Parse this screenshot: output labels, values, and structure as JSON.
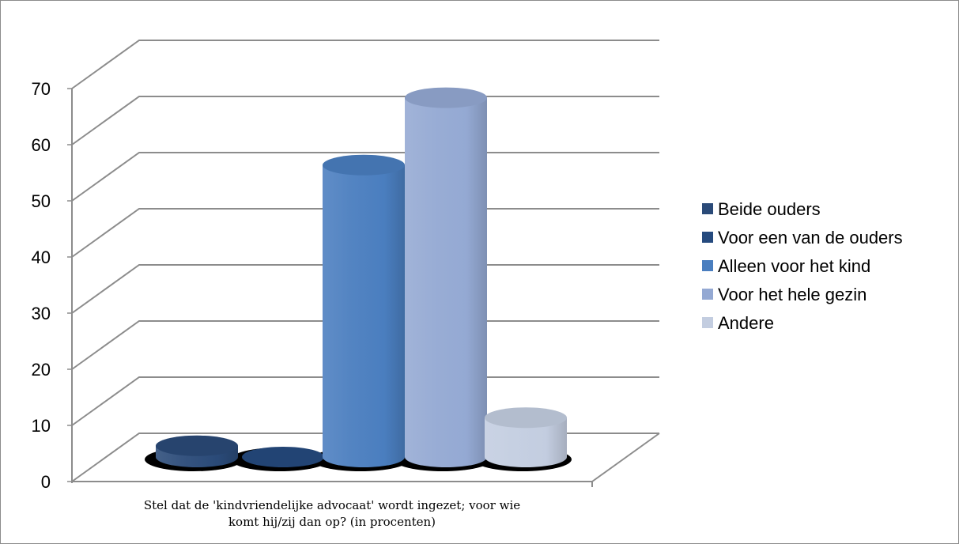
{
  "chart_data": {
    "type": "bar",
    "style": "3d-cylinder",
    "title": "",
    "xlabel": "",
    "ylabel": "",
    "category_label_lines": [
      "Stel dat de 'kindvriendelijke advocaat' wordt ingezet; voor wie",
      "komt hij/zij dan op? (in procenten)"
    ],
    "ylim": [
      0,
      70
    ],
    "y_ticks": [
      0,
      10,
      20,
      30,
      40,
      50,
      60,
      70
    ],
    "grid": true,
    "legend_position": "right",
    "series": [
      {
        "name": "Beide ouders",
        "value": 2,
        "color": "#2a4a78"
      },
      {
        "name": "Voor een van de ouders",
        "value": 0,
        "color": "#254a7e"
      },
      {
        "name": "Alleen voor het kind",
        "value": 52,
        "color": "#4a7ebf"
      },
      {
        "name": "Voor het hele gezin",
        "value": 64,
        "color": "#94a9d3"
      },
      {
        "name": "Andere",
        "value": 7,
        "color": "#c3cde0"
      }
    ]
  }
}
